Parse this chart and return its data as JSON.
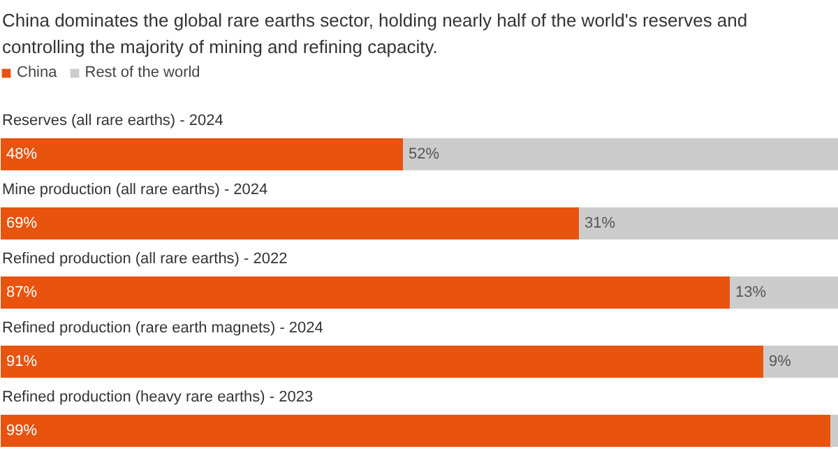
{
  "chart_data": {
    "type": "bar",
    "orientation": "horizontal",
    "stacked": true,
    "title": "China dominates the global rare earths sector, holding nearly half of the world's reserves and controlling the majority of mining and refining capacity.",
    "categories": [
      "Reserves (all rare earths) - 2024",
      "Mine production (all rare earths) - 2024",
      "Refined production (all rare earths) - 2022",
      "Refined production (rare earth magnets) - 2024",
      "Refined production (heavy rare earths) - 2023"
    ],
    "series": [
      {
        "name": "China",
        "color": "#e8530e",
        "values": [
          48,
          69,
          87,
          91,
          99
        ],
        "value_labels": [
          "48%",
          "69%",
          "87%",
          "91%",
          "99%"
        ]
      },
      {
        "name": "Rest of the world",
        "color": "#cccccc",
        "values": [
          52,
          31,
          13,
          9,
          1
        ],
        "value_labels": [
          "52%",
          "31%",
          "13%",
          "9%",
          null
        ]
      }
    ],
    "legend": "top left",
    "grid": false
  }
}
